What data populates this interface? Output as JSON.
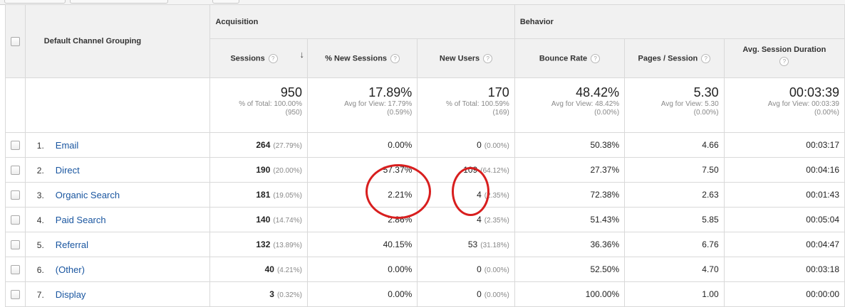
{
  "header": {
    "dimension": "Default Channel Grouping",
    "groups": {
      "acquisition": "Acquisition",
      "behavior": "Behavior"
    },
    "help": "?",
    "sort_indicator": "↓",
    "columns": {
      "sessions": "Sessions",
      "new_sessions": "% New Sessions",
      "new_users": "New Users",
      "bounce": "Bounce Rate",
      "pages": "Pages / Session",
      "duration": "Avg. Session Duration"
    }
  },
  "totals": {
    "sessions": {
      "value": "950",
      "line1": "% of Total: 100.00%",
      "line2": "(950)"
    },
    "new_sessions": {
      "value": "17.89%",
      "line1": "Avg for View: 17.79%",
      "line2": "(0.59%)"
    },
    "new_users": {
      "value": "170",
      "line1": "% of Total: 100.59%",
      "line2": "(169)"
    },
    "bounce": {
      "value": "48.42%",
      "line1": "Avg for View: 48.42%",
      "line2": "(0.00%)"
    },
    "pages": {
      "value": "5.30",
      "line1": "Avg for View: 5.30",
      "line2": "(0.00%)"
    },
    "duration": {
      "value": "00:03:39",
      "line1": "Avg for View: 00:03:39",
      "line2": "(0.00%)"
    }
  },
  "rows": [
    {
      "index": "1.",
      "channel": "Email",
      "sessions": "264",
      "sessions_pct": "(27.79%)",
      "new_sessions": "0.00%",
      "new_users": "0",
      "new_users_pct": "(0.00%)",
      "bounce": "50.38%",
      "pages": "4.66",
      "duration": "00:03:17"
    },
    {
      "index": "2.",
      "channel": "Direct",
      "sessions": "190",
      "sessions_pct": "(20.00%)",
      "new_sessions": "57.37%",
      "new_users": "109",
      "new_users_pct": "(64.12%)",
      "bounce": "27.37%",
      "pages": "7.50",
      "duration": "00:04:16"
    },
    {
      "index": "3.",
      "channel": "Organic Search",
      "sessions": "181",
      "sessions_pct": "(19.05%)",
      "new_sessions": "2.21%",
      "new_users": "4",
      "new_users_pct": "(2.35%)",
      "bounce": "72.38%",
      "pages": "2.63",
      "duration": "00:01:43"
    },
    {
      "index": "4.",
      "channel": "Paid Search",
      "sessions": "140",
      "sessions_pct": "(14.74%)",
      "new_sessions": "2.86%",
      "new_users": "4",
      "new_users_pct": "(2.35%)",
      "bounce": "51.43%",
      "pages": "5.85",
      "duration": "00:05:04"
    },
    {
      "index": "5.",
      "channel": "Referral",
      "sessions": "132",
      "sessions_pct": "(13.89%)",
      "new_sessions": "40.15%",
      "new_users": "53",
      "new_users_pct": "(31.18%)",
      "bounce": "36.36%",
      "pages": "6.76",
      "duration": "00:04:47"
    },
    {
      "index": "6.",
      "channel": "(Other)",
      "sessions": "40",
      "sessions_pct": "(4.21%)",
      "new_sessions": "0.00%",
      "new_users": "0",
      "new_users_pct": "(0.00%)",
      "bounce": "52.50%",
      "pages": "4.70",
      "duration": "00:03:18"
    },
    {
      "index": "7.",
      "channel": "Display",
      "sessions": "3",
      "sessions_pct": "(0.32%)",
      "new_sessions": "0.00%",
      "new_users": "0",
      "new_users_pct": "(0.00%)",
      "bounce": "100.00%",
      "pages": "1.00",
      "duration": "00:00:00"
    }
  ],
  "colors": {
    "link": "#1a56a0",
    "annotation": "#d81e1e",
    "header_bg": "#f1f1f1",
    "border": "#d9d9d9"
  }
}
